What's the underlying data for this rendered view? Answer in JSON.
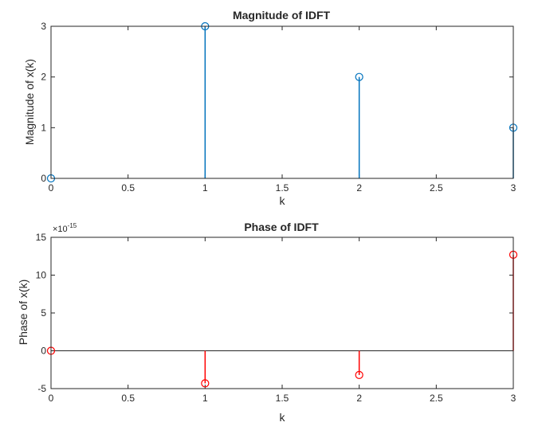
{
  "chart_data": [
    {
      "type": "stem",
      "title": "Magnitude of IDFT",
      "xlabel": "k",
      "ylabel": "Magnitude of x(k)",
      "x": [
        0,
        1,
        2,
        3
      ],
      "values": [
        0,
        3,
        2,
        1
      ],
      "xlim": [
        0,
        3
      ],
      "ylim": [
        0,
        3
      ],
      "xticks": [
        0,
        0.5,
        1,
        1.5,
        2,
        2.5,
        3
      ],
      "xtick_labels": [
        "0",
        "0.5",
        "1",
        "1.5",
        "2",
        "2.5",
        "3"
      ],
      "yticks": [
        0,
        1,
        2,
        3
      ],
      "ytick_labels": [
        "0",
        "1",
        "2",
        "3"
      ],
      "exponent_label": "",
      "exponent_value": "",
      "color": "#0072BD",
      "grid": false,
      "baseline": false
    },
    {
      "type": "stem",
      "title": "Phase of IDFT",
      "xlabel": "k",
      "ylabel": "Phase of x(k)",
      "x": [
        0,
        1,
        2,
        3
      ],
      "values": [
        0,
        -4.3,
        -3.2,
        12.7
      ],
      "value_multiplier": "1e-15",
      "xlim": [
        0,
        3
      ],
      "ylim": [
        -5,
        15
      ],
      "xticks": [
        0,
        0.5,
        1,
        1.5,
        2,
        2.5,
        3
      ],
      "xtick_labels": [
        "0",
        "0.5",
        "1",
        "1.5",
        "2",
        "2.5",
        "3"
      ],
      "yticks": [
        -5,
        0,
        5,
        10,
        15
      ],
      "ytick_labels": [
        "-5",
        "0",
        "5",
        "10",
        "15"
      ],
      "exponent_label": "×10",
      "exponent_value": "-15",
      "color": "#FF0000",
      "grid": false,
      "baseline": true
    }
  ]
}
